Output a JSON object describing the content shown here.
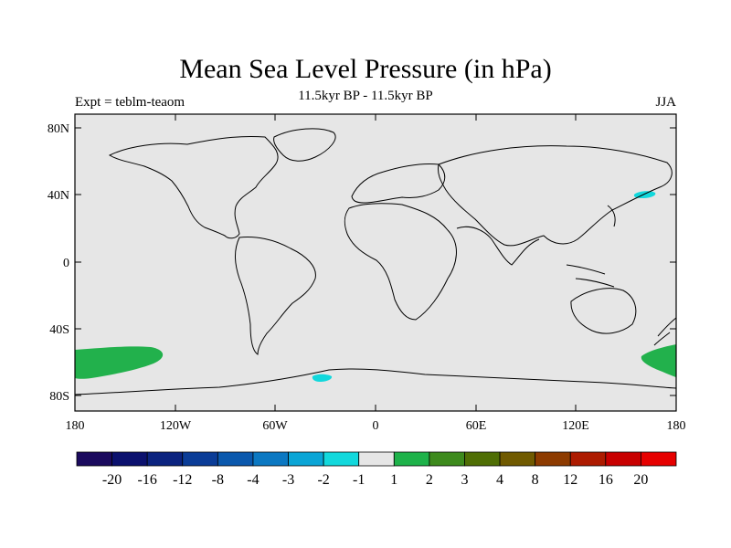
{
  "header": {
    "title": "Mean Sea Level Pressure (in hPa)",
    "subtitle": "11.5kyr BP - 11.5kyr BP",
    "left_label": "Expt = teblm-teaom",
    "right_label": "JJA"
  },
  "axes": {
    "x_ticks": [
      "180",
      "120W",
      "60W",
      "0",
      "60E",
      "120E",
      "180"
    ],
    "y_ticks": [
      "80N",
      "40N",
      "0",
      "40S",
      "80S"
    ]
  },
  "colorbar": {
    "labels": [
      "-20",
      "-16",
      "-12",
      "-8",
      "-4",
      "-3",
      "-2",
      "-1",
      "1",
      "2",
      "3",
      "4",
      "8",
      "12",
      "16",
      "20"
    ],
    "colors": [
      "#1b0a5e",
      "#0b116e",
      "#0b237f",
      "#0a3c97",
      "#0a58ad",
      "#0b78c2",
      "#0aa5d6",
      "#12d8dc",
      "#e6e6e6",
      "#1eb24a",
      "#3d8a1d",
      "#4f6e05",
      "#705a00",
      "#8d3b00",
      "#ad1b00",
      "#c80000",
      "#e60000"
    ]
  },
  "map": {
    "background_color": "#e6e6e6",
    "anomaly_regions": [
      {
        "name": "south-pacific-positive",
        "color": "#22b14c"
      },
      {
        "name": "south-indian-pacific-positive",
        "color": "#22b14c"
      },
      {
        "name": "north-pacific-negative",
        "color": "#12d8dc"
      },
      {
        "name": "weddell-negative",
        "color": "#12d8dc"
      }
    ]
  }
}
